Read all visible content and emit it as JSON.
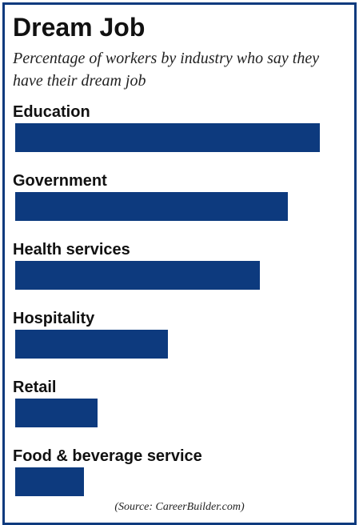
{
  "chart_data": {
    "type": "bar",
    "orientation": "horizontal",
    "title": "Dream Job",
    "subtitle": "Percentage of workers by industry who say they have their dream job",
    "categories": [
      "Education",
      "Government",
      "Health services",
      "Hospitality",
      "Retail",
      "Food & beverage service"
    ],
    "values": [
      38,
      34,
      30.5,
      19,
      10.3,
      8.6
    ],
    "xlim": [
      0,
      38
    ],
    "grid": false,
    "legend": "none",
    "bar_color": "#0d3a7e",
    "source": "(Source: CareerBuilder.com)"
  },
  "colors": {
    "bar": "#0d3a7e",
    "border": "#0d3a7e",
    "text": "#111111"
  }
}
